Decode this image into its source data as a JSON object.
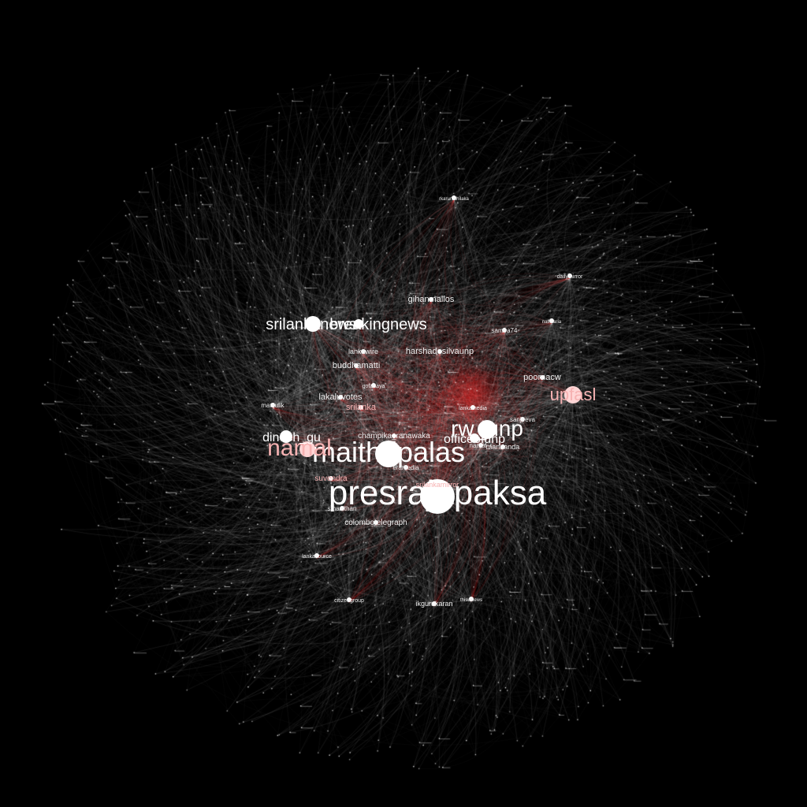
{
  "graph": {
    "background": "#000000",
    "edge_color": "#ffffff",
    "accent_edge_color": "#ff2a2a",
    "label_colors": {
      "white": "#ffffff",
      "pink": "#f6b2b2",
      "light": "#eeeeee"
    },
    "major_nodes": [
      {
        "id": "presrajapaksa",
        "label": "presrajapaksa",
        "tone": "white",
        "rank": 1
      },
      {
        "id": "maithripalas",
        "label": "maithripalas",
        "tone": "white",
        "rank": 2
      },
      {
        "id": "namal",
        "label": "namal",
        "tone": "pink",
        "rank": 3
      },
      {
        "id": "rw_unp",
        "label": "rw_unp",
        "tone": "white",
        "rank": 4
      },
      {
        "id": "srilankanews",
        "label": "srilankanews",
        "tone": "white",
        "rank": 5
      },
      {
        "id": "breakingnews",
        "label": "breakingnews",
        "tone": "white",
        "rank": 5
      },
      {
        "id": "upfasl",
        "label": "upfasl",
        "tone": "pink",
        "rank": 6
      },
      {
        "id": "dinesh",
        "label": "dinesh_gu",
        "tone": "white",
        "rank": 7
      },
      {
        "id": "officeunp",
        "label": "officeofunp",
        "tone": "white",
        "rank": 7
      }
    ],
    "minor_nodes": [
      {
        "id": "gihanmallos",
        "label": "gihanmallos",
        "tone": "light"
      },
      {
        "id": "harshadesilvaunp",
        "label": "harshadesilvaunp",
        "tone": "light"
      },
      {
        "id": "lankawire",
        "label": "lankawire",
        "tone": "light"
      },
      {
        "id": "buddhamatti",
        "label": "buddhamatti",
        "tone": "light"
      },
      {
        "id": "poornacw",
        "label": "poornacw",
        "tone": "light"
      },
      {
        "id": "sanjeeva",
        "label": "sanjeeva",
        "tone": "light"
      },
      {
        "id": "lakaluvotes",
        "label": "lakaluvotes",
        "tone": "light"
      },
      {
        "id": "srilanka",
        "label": "srilanka",
        "tone": "pink"
      },
      {
        "id": "mandanda",
        "label": "mandanda",
        "tone": "light"
      },
      {
        "id": "champikaranawaka",
        "label": "champika_ranawaka",
        "tone": "light"
      },
      {
        "id": "namalr",
        "label": "namal_r",
        "tone": "light"
      },
      {
        "id": "suvendra",
        "label": "suvendra",
        "tone": "pink"
      },
      {
        "id": "srilankamirror",
        "label": "srilankamirror",
        "tone": "pink"
      },
      {
        "id": "smaalthan",
        "label": "smaalthan",
        "tone": "light"
      },
      {
        "id": "colombotelegraph",
        "label": "colombotelegraph",
        "tone": "light"
      },
      {
        "id": "manjulik",
        "label": "manjulik",
        "tone": "light"
      },
      {
        "id": "ikgurukaran",
        "label": "ikgurukaran",
        "tone": "light"
      },
      {
        "id": "citizengroup",
        "label": "citizengroup",
        "tone": "light"
      },
      {
        "id": "rkarunathilaka",
        "label": "rkarunathilaka",
        "tone": "light"
      },
      {
        "id": "dailymirror",
        "label": "dailymirror",
        "tone": "light"
      },
      {
        "id": "samira",
        "label": "samira74",
        "tone": "light"
      },
      {
        "id": "gotabaya",
        "label": "gotabaya",
        "tone": "light"
      },
      {
        "id": "eramedia",
        "label": "eramedia",
        "tone": "light"
      },
      {
        "id": "lankamedia",
        "label": "lankamedia",
        "tone": "light"
      },
      {
        "id": "naffisaria",
        "label": "naffisaria",
        "tone": "light"
      },
      {
        "id": "lankasource",
        "label": "lankasource",
        "tone": "light"
      },
      {
        "id": "thisulnews",
        "label": "thisulnews",
        "tone": "light"
      }
    ]
  }
}
